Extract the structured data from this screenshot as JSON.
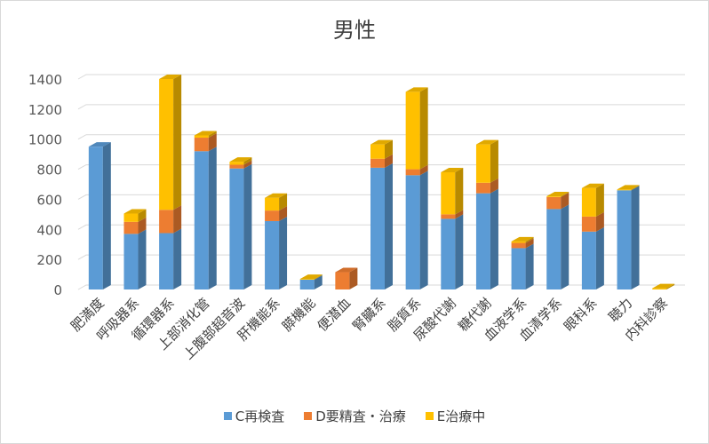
{
  "chart_data": {
    "type": "bar",
    "stacked": true,
    "title": "男性",
    "categories": [
      "肥満度",
      "呼吸器系",
      "循環器系",
      "上部消化管",
      "上腹部超音波",
      "肝機能系",
      "膵機能",
      "便潜血",
      "腎臓系",
      "脂質系",
      "尿酸代謝",
      "糖代謝",
      "血液学系",
      "血清学系",
      "眼科系",
      "聴力",
      "内科診察"
    ],
    "series": [
      {
        "name": "C再検査",
        "color": "#5b9bd5",
        "values": [
          950,
          370,
          375,
          920,
          805,
          455,
          65,
          0,
          810,
          760,
          470,
          640,
          275,
          535,
          385,
          660,
          0
        ]
      },
      {
        "name": "D要精査・治療",
        "color": "#ed7d31",
        "values": [
          0,
          80,
          155,
          90,
          25,
          70,
          0,
          115,
          60,
          40,
          30,
          70,
          35,
          80,
          100,
          0,
          0
        ]
      },
      {
        "name": "E治療中",
        "color": "#ffc000",
        "values": [
          0,
          55,
          870,
          15,
          20,
          85,
          5,
          0,
          95,
          515,
          280,
          255,
          10,
          5,
          190,
          5,
          8
        ]
      }
    ],
    "ylim": [
      0,
      1400
    ],
    "yticks": [
      0,
      200,
      400,
      600,
      800,
      1000,
      1200,
      1400
    ],
    "grid": true,
    "legend_position": "bottom"
  }
}
